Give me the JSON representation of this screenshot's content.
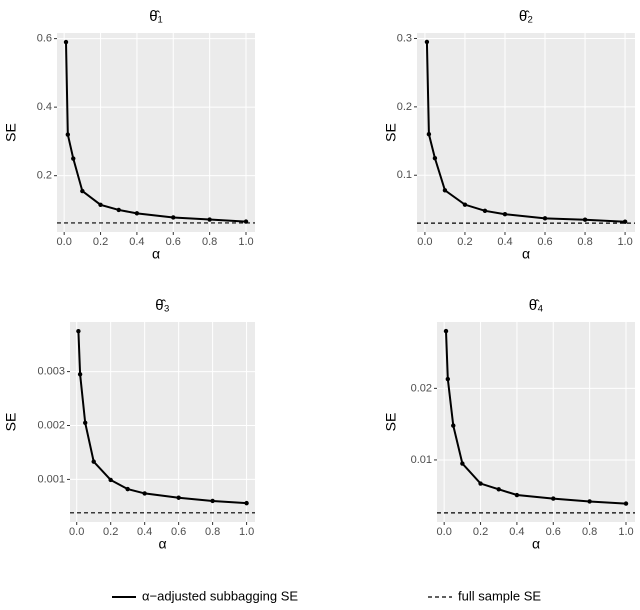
{
  "chart_data": [
    {
      "type": "line",
      "title": "θ̂₁",
      "x_label": "α",
      "y_label": "SE",
      "x": [
        0.01,
        0.02,
        0.05,
        0.1,
        0.2,
        0.3,
        0.4,
        0.6,
        0.8,
        1.0
      ],
      "series": [
        {
          "name": "α−adjusted subbagging SE",
          "color": "#000000",
          "values": [
            0.59,
            0.32,
            0.25,
            0.155,
            0.115,
            0.1,
            0.09,
            0.078,
            0.072,
            0.066
          ]
        }
      ],
      "hline": {
        "name": "full sample SE",
        "value": 0.062,
        "color": "#000000"
      },
      "xlim": [
        -0.0395,
        1.0495
      ],
      "ylim": [
        0.0356,
        0.6164
      ],
      "xticks": [
        {
          "value": 0,
          "label": "0.0"
        },
        0.2,
        0.4,
        0.6,
        0.8,
        {
          "value": 1,
          "label": "1.0"
        }
      ],
      "yticks": [
        0.2,
        0.4,
        0.6
      ],
      "grid": true
    },
    {
      "type": "line",
      "title": "θ̂₂",
      "x_label": "α",
      "y_label": "SE",
      "x": [
        0.01,
        0.02,
        0.05,
        0.1,
        0.2,
        0.3,
        0.4,
        0.6,
        0.8,
        1.0
      ],
      "series": [
        {
          "color": "#000000",
          "values": [
            0.295,
            0.16,
            0.125,
            0.078,
            0.057,
            0.048,
            0.043,
            0.037,
            0.035,
            0.032
          ]
        }
      ],
      "hline": {
        "value": 0.03,
        "color": "#000000"
      },
      "xlim": [
        -0.0395,
        1.0495
      ],
      "ylim": [
        0.017,
        0.308
      ],
      "xticks": [
        {
          "value": 0,
          "label": "0.0"
        },
        0.2,
        0.4,
        0.6,
        0.8,
        {
          "value": 1,
          "label": "1.0"
        }
      ],
      "yticks": [
        0.1,
        0.2,
        0.3
      ],
      "grid": true
    },
    {
      "type": "line",
      "title": "θ̂₃",
      "x_label": "α",
      "y_label": "SE",
      "x": [
        0.01,
        0.02,
        0.05,
        0.1,
        0.2,
        0.3,
        0.4,
        0.6,
        0.8,
        1.0
      ],
      "series": [
        {
          "color": "#000000",
          "values": [
            0.00375,
            0.00295,
            0.00205,
            0.00133,
            0.00099,
            0.00082,
            0.00074,
            0.00066,
            0.0006,
            0.00056
          ]
        }
      ],
      "hline": {
        "value": 0.00038,
        "color": "#000000"
      },
      "xlim": [
        -0.0395,
        1.0495
      ],
      "ylim": [
        0.00021,
        0.00392
      ],
      "xticks": [
        {
          "value": 0,
          "label": "0.0"
        },
        0.2,
        0.4,
        0.6,
        0.8,
        {
          "value": 1,
          "label": "1.0"
        }
      ],
      "yticks": [
        0.001,
        0.002,
        0.003
      ],
      "grid": true
    },
    {
      "type": "line",
      "title": "θ̂₄",
      "x_label": "α",
      "y_label": "SE",
      "x": [
        0.01,
        0.02,
        0.05,
        0.1,
        0.2,
        0.3,
        0.4,
        0.6,
        0.8,
        1.0
      ],
      "series": [
        {
          "color": "#000000",
          "values": [
            0.028,
            0.0213,
            0.0148,
            0.0095,
            0.0067,
            0.0059,
            0.0051,
            0.0046,
            0.0042,
            0.0039
          ]
        }
      ],
      "hline": {
        "value": 0.0026,
        "color": "#000000"
      },
      "xlim": [
        -0.0395,
        1.0495
      ],
      "ylim": [
        0.00133,
        0.02927
      ],
      "xticks": [
        {
          "value": 0,
          "label": "0.0"
        },
        0.2,
        0.4,
        0.6,
        0.8,
        {
          "value": 1,
          "label": "1.0"
        }
      ],
      "yticks": [
        0.01,
        0.02
      ],
      "grid": true
    }
  ]
}
